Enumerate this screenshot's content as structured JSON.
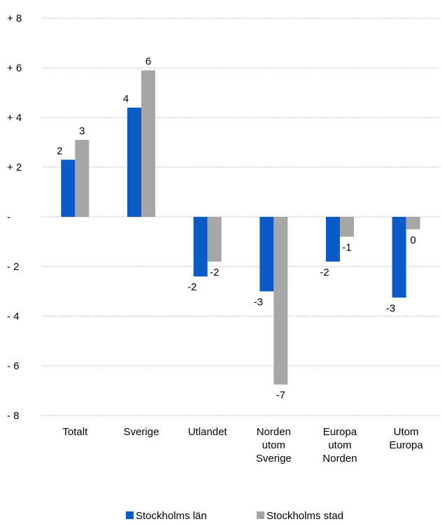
{
  "chart_data": {
    "type": "bar",
    "categories": [
      "Totalt",
      "Sverige",
      "Utlandet",
      "Norden utom Sverige",
      "Europa utom Norden",
      "Utom Europa"
    ],
    "category_lines": [
      [
        "Totalt"
      ],
      [
        "Sverige"
      ],
      [
        "Utlandet"
      ],
      [
        "Norden",
        "utom",
        "Sverige"
      ],
      [
        "Europa",
        "utom",
        "Norden"
      ],
      [
        "Utom",
        "Europa"
      ]
    ],
    "series": [
      {
        "name": "Stockholms län",
        "color": "#0A5AC8",
        "values": [
          2.3,
          4.4,
          -2.4,
          -3.0,
          -1.8,
          -3.25
        ],
        "labels": [
          "2",
          "4",
          "-2",
          "-3",
          "-2",
          "-3"
        ]
      },
      {
        "name": "Stockholms stad",
        "color": "#A6A6A6",
        "values": [
          3.1,
          5.9,
          -1.8,
          -6.75,
          -0.8,
          -0.5
        ],
        "labels": [
          "3",
          "6",
          "-2",
          "-7",
          "-1",
          "0"
        ]
      }
    ],
    "ylim": [
      -8,
      8
    ],
    "yticks": [
      8,
      6,
      4,
      2,
      0,
      -2,
      -4,
      -6,
      -8
    ],
    "ytick_labels": [
      "+ 8",
      "+ 6",
      "+ 4",
      "+ 2",
      "-",
      "- 2",
      "- 4",
      "- 6",
      "- 8"
    ],
    "grid": true,
    "legend_position": "bottom"
  }
}
